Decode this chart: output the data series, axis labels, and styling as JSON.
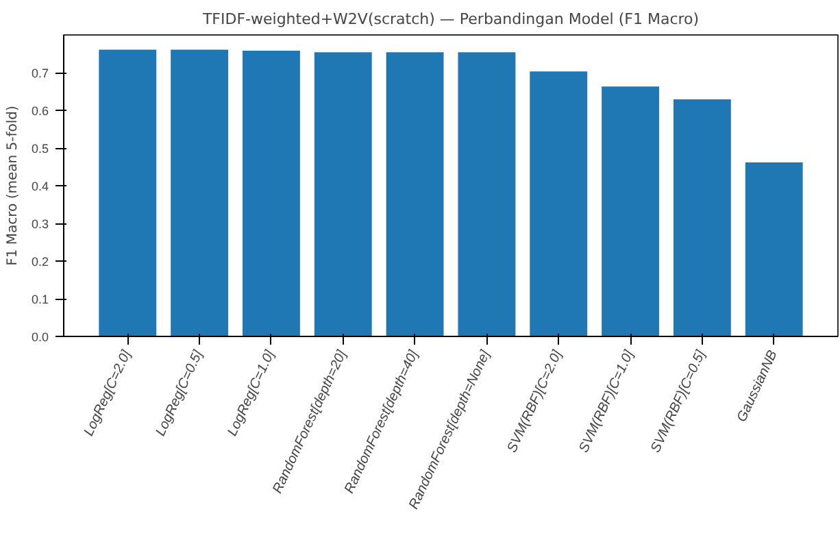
{
  "chart_data": {
    "type": "bar",
    "title": "TFIDF-weighted+W2V(scratch) — Perbandingan Model (F1 Macro)",
    "ylabel": "F1 Macro (mean 5-fold)",
    "categories": [
      "LogReg[C=2.0]",
      "LogReg[C=0.5]",
      "LogReg[C=1.0]",
      "RandomForest[depth=20]",
      "RandomForest[depth=40]",
      "RandomForest[depth=None]",
      "SVM(RBF)[C=2.0]",
      "SVM(RBF)[C=1.0]",
      "SVM(RBF)[C=0.5]",
      "GaussianNB"
    ],
    "values": [
      0.761,
      0.761,
      0.758,
      0.754,
      0.754,
      0.754,
      0.703,
      0.663,
      0.629,
      0.462
    ],
    "color": "#1f77b4",
    "ylim": [
      0,
      0.8
    ],
    "yticks": [
      {
        "value": 0,
        "label": "0.0"
      },
      0.1,
      0.2,
      0.3,
      0.4,
      0.5,
      0.6,
      0.7
    ],
    "grid": false
  }
}
